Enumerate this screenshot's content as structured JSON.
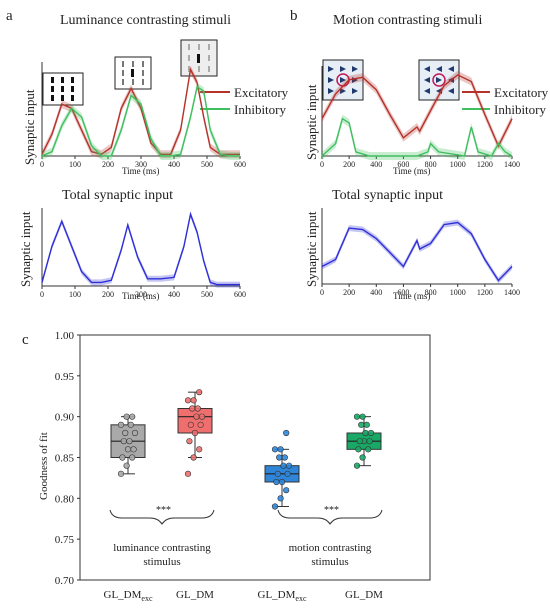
{
  "panels": {
    "a": {
      "letter": "a",
      "title": "Luminance contrasting stimuli",
      "ylabel": "Synaptic input",
      "xlabel": "Time (ms)",
      "xticks": [
        "0",
        "100",
        "200",
        "300",
        "400",
        "500",
        "600"
      ],
      "legend": [
        "Excitatory",
        "Inhibitory"
      ],
      "lower_title": "Total synaptic input",
      "lower_ylabel": "Synaptic input",
      "lower_xlabel": "Time (ms)"
    },
    "b": {
      "letter": "b",
      "title": "Motion contrasting stimuli",
      "ylabel": "Synaptic input",
      "xlabel": "Time (ms)",
      "xticks": [
        "0",
        "200",
        "400",
        "600",
        "800",
        "1000",
        "1200",
        "1400"
      ],
      "legend": [
        "Excitatory",
        "Inhibitory"
      ],
      "lower_title": "Total synaptic input",
      "lower_ylabel": "Synaptic input",
      "lower_xlabel": "Time (ms)"
    },
    "c": {
      "letter": "c",
      "ylabel": "Goodness of fit",
      "group_labels": [
        "luminance contrasting\nstimulus",
        "motion contrasting\nstimulus"
      ],
      "significance": [
        "***",
        "***"
      ]
    }
  },
  "colors": {
    "excitatory": "#b5332b",
    "inhibitory": "#3fbf5f",
    "total": "#2f2fd8",
    "box_gray": "#a9a9a9",
    "box_red": "#ef6f6f",
    "box_blue": "#2f86d9",
    "box_green": "#1aa866"
  },
  "chart_data": [
    {
      "type": "line",
      "panel": "a-top",
      "xlim": [
        0,
        600
      ],
      "series": [
        {
          "name": "Excitatory",
          "x": [
            0,
            30,
            60,
            90,
            120,
            150,
            180,
            210,
            240,
            270,
            300,
            330,
            360,
            390,
            420,
            450,
            470,
            490,
            510,
            540,
            570,
            600
          ],
          "y": [
            0.02,
            0.25,
            0.6,
            0.55,
            0.3,
            0.05,
            0.02,
            0.1,
            0.55,
            0.78,
            0.55,
            0.15,
            0.02,
            0.02,
            0.3,
            1.0,
            0.85,
            0.45,
            0.1,
            0.02,
            0.02,
            0.02
          ]
        },
        {
          "name": "Inhibitory",
          "x": [
            0,
            30,
            60,
            90,
            120,
            150,
            180,
            210,
            240,
            270,
            300,
            330,
            360,
            390,
            420,
            450,
            470,
            490,
            510,
            540,
            570,
            600
          ],
          "y": [
            0.0,
            0.05,
            0.35,
            0.55,
            0.45,
            0.12,
            0.0,
            0.0,
            0.3,
            0.7,
            0.6,
            0.2,
            0.0,
            0.0,
            0.02,
            0.45,
            0.8,
            0.75,
            0.3,
            0.02,
            0.0,
            0.0
          ]
        }
      ]
    },
    {
      "type": "line",
      "panel": "a-bottom",
      "xlim": [
        0,
        600
      ],
      "series": [
        {
          "name": "Total synaptic input",
          "x": [
            0,
            30,
            60,
            90,
            120,
            150,
            180,
            210,
            240,
            260,
            290,
            320,
            360,
            400,
            430,
            450,
            470,
            490,
            510,
            530,
            560,
            600
          ],
          "y": [
            0.05,
            0.55,
            0.9,
            0.55,
            0.2,
            0.05,
            0.05,
            0.08,
            0.5,
            0.85,
            0.4,
            0.1,
            0.1,
            0.12,
            0.55,
            1.0,
            0.75,
            0.35,
            0.05,
            0.02,
            0.02,
            0.02
          ]
        }
      ]
    },
    {
      "type": "line",
      "panel": "b-top",
      "xlim": [
        0,
        1400
      ],
      "series": [
        {
          "name": "Excitatory",
          "x": [
            0,
            100,
            200,
            300,
            400,
            500,
            600,
            700,
            720,
            800,
            900,
            1000,
            1100,
            1200,
            1300,
            1400
          ],
          "y": [
            0.45,
            0.75,
            0.92,
            0.95,
            0.8,
            0.5,
            0.22,
            0.35,
            0.3,
            0.55,
            0.85,
            0.98,
            0.9,
            0.5,
            0.12,
            0.45
          ]
        },
        {
          "name": "Inhibitory",
          "x": [
            0,
            100,
            150,
            200,
            250,
            350,
            700,
            780,
            800,
            860,
            1050,
            1100,
            1150,
            1250,
            1300,
            1350,
            1400
          ],
          "y": [
            0.0,
            0.15,
            0.45,
            0.4,
            0.05,
            0.0,
            0.0,
            0.05,
            0.15,
            0.05,
            0.0,
            0.35,
            0.05,
            0.0,
            0.15,
            0.05,
            0.0
          ]
        }
      ]
    },
    {
      "type": "line",
      "panel": "b-bottom",
      "xlim": [
        0,
        1400
      ],
      "series": [
        {
          "name": "Total synaptic input",
          "x": [
            0,
            100,
            200,
            300,
            400,
            500,
            600,
            700,
            720,
            800,
            900,
            1000,
            1100,
            1200,
            1300,
            1400
          ],
          "y": [
            0.25,
            0.35,
            0.8,
            0.78,
            0.65,
            0.45,
            0.25,
            0.62,
            0.5,
            0.58,
            0.85,
            0.88,
            0.72,
            0.35,
            0.05,
            0.25
          ]
        }
      ]
    },
    {
      "type": "box",
      "panel": "c",
      "ylim": [
        0.7,
        1.0
      ],
      "yticks": [
        "0.70",
        "0.75",
        "0.80",
        "0.85",
        "0.90",
        "0.95",
        "1.00"
      ],
      "categories": [
        "GL_DMexc",
        "GL_DM",
        "GL_DMexc",
        "GL_DM"
      ],
      "category_main": [
        "GL_DM",
        "GL_DM",
        "GL_DM",
        "GL_DM"
      ],
      "category_sub": [
        "exc",
        "",
        "exc",
        ""
      ],
      "boxes": [
        {
          "category": "GL_DMexc",
          "min": 0.83,
          "q1": 0.85,
          "median": 0.87,
          "q3": 0.89,
          "max": 0.9,
          "points": [
            0.83,
            0.84,
            0.85,
            0.85,
            0.86,
            0.86,
            0.87,
            0.87,
            0.88,
            0.88,
            0.89,
            0.89,
            0.9,
            0.9
          ]
        },
        {
          "category": "GL_DM",
          "min": 0.85,
          "q1": 0.88,
          "median": 0.9,
          "q3": 0.91,
          "max": 0.93,
          "points": [
            0.83,
            0.85,
            0.86,
            0.87,
            0.88,
            0.89,
            0.89,
            0.9,
            0.9,
            0.91,
            0.91,
            0.92,
            0.92,
            0.93
          ]
        },
        {
          "category": "GL_DMexc",
          "min": 0.79,
          "q1": 0.82,
          "median": 0.83,
          "q3": 0.84,
          "max": 0.86,
          "points": [
            0.79,
            0.8,
            0.81,
            0.82,
            0.82,
            0.83,
            0.83,
            0.84,
            0.84,
            0.85,
            0.85,
            0.86,
            0.86,
            0.88
          ]
        },
        {
          "category": "GL_DM",
          "min": 0.84,
          "q1": 0.86,
          "median": 0.87,
          "q3": 0.88,
          "max": 0.9,
          "points": [
            0.84,
            0.85,
            0.86,
            0.86,
            0.87,
            0.87,
            0.87,
            0.88,
            0.88,
            0.89,
            0.89,
            0.9,
            0.9
          ]
        }
      ]
    }
  ]
}
